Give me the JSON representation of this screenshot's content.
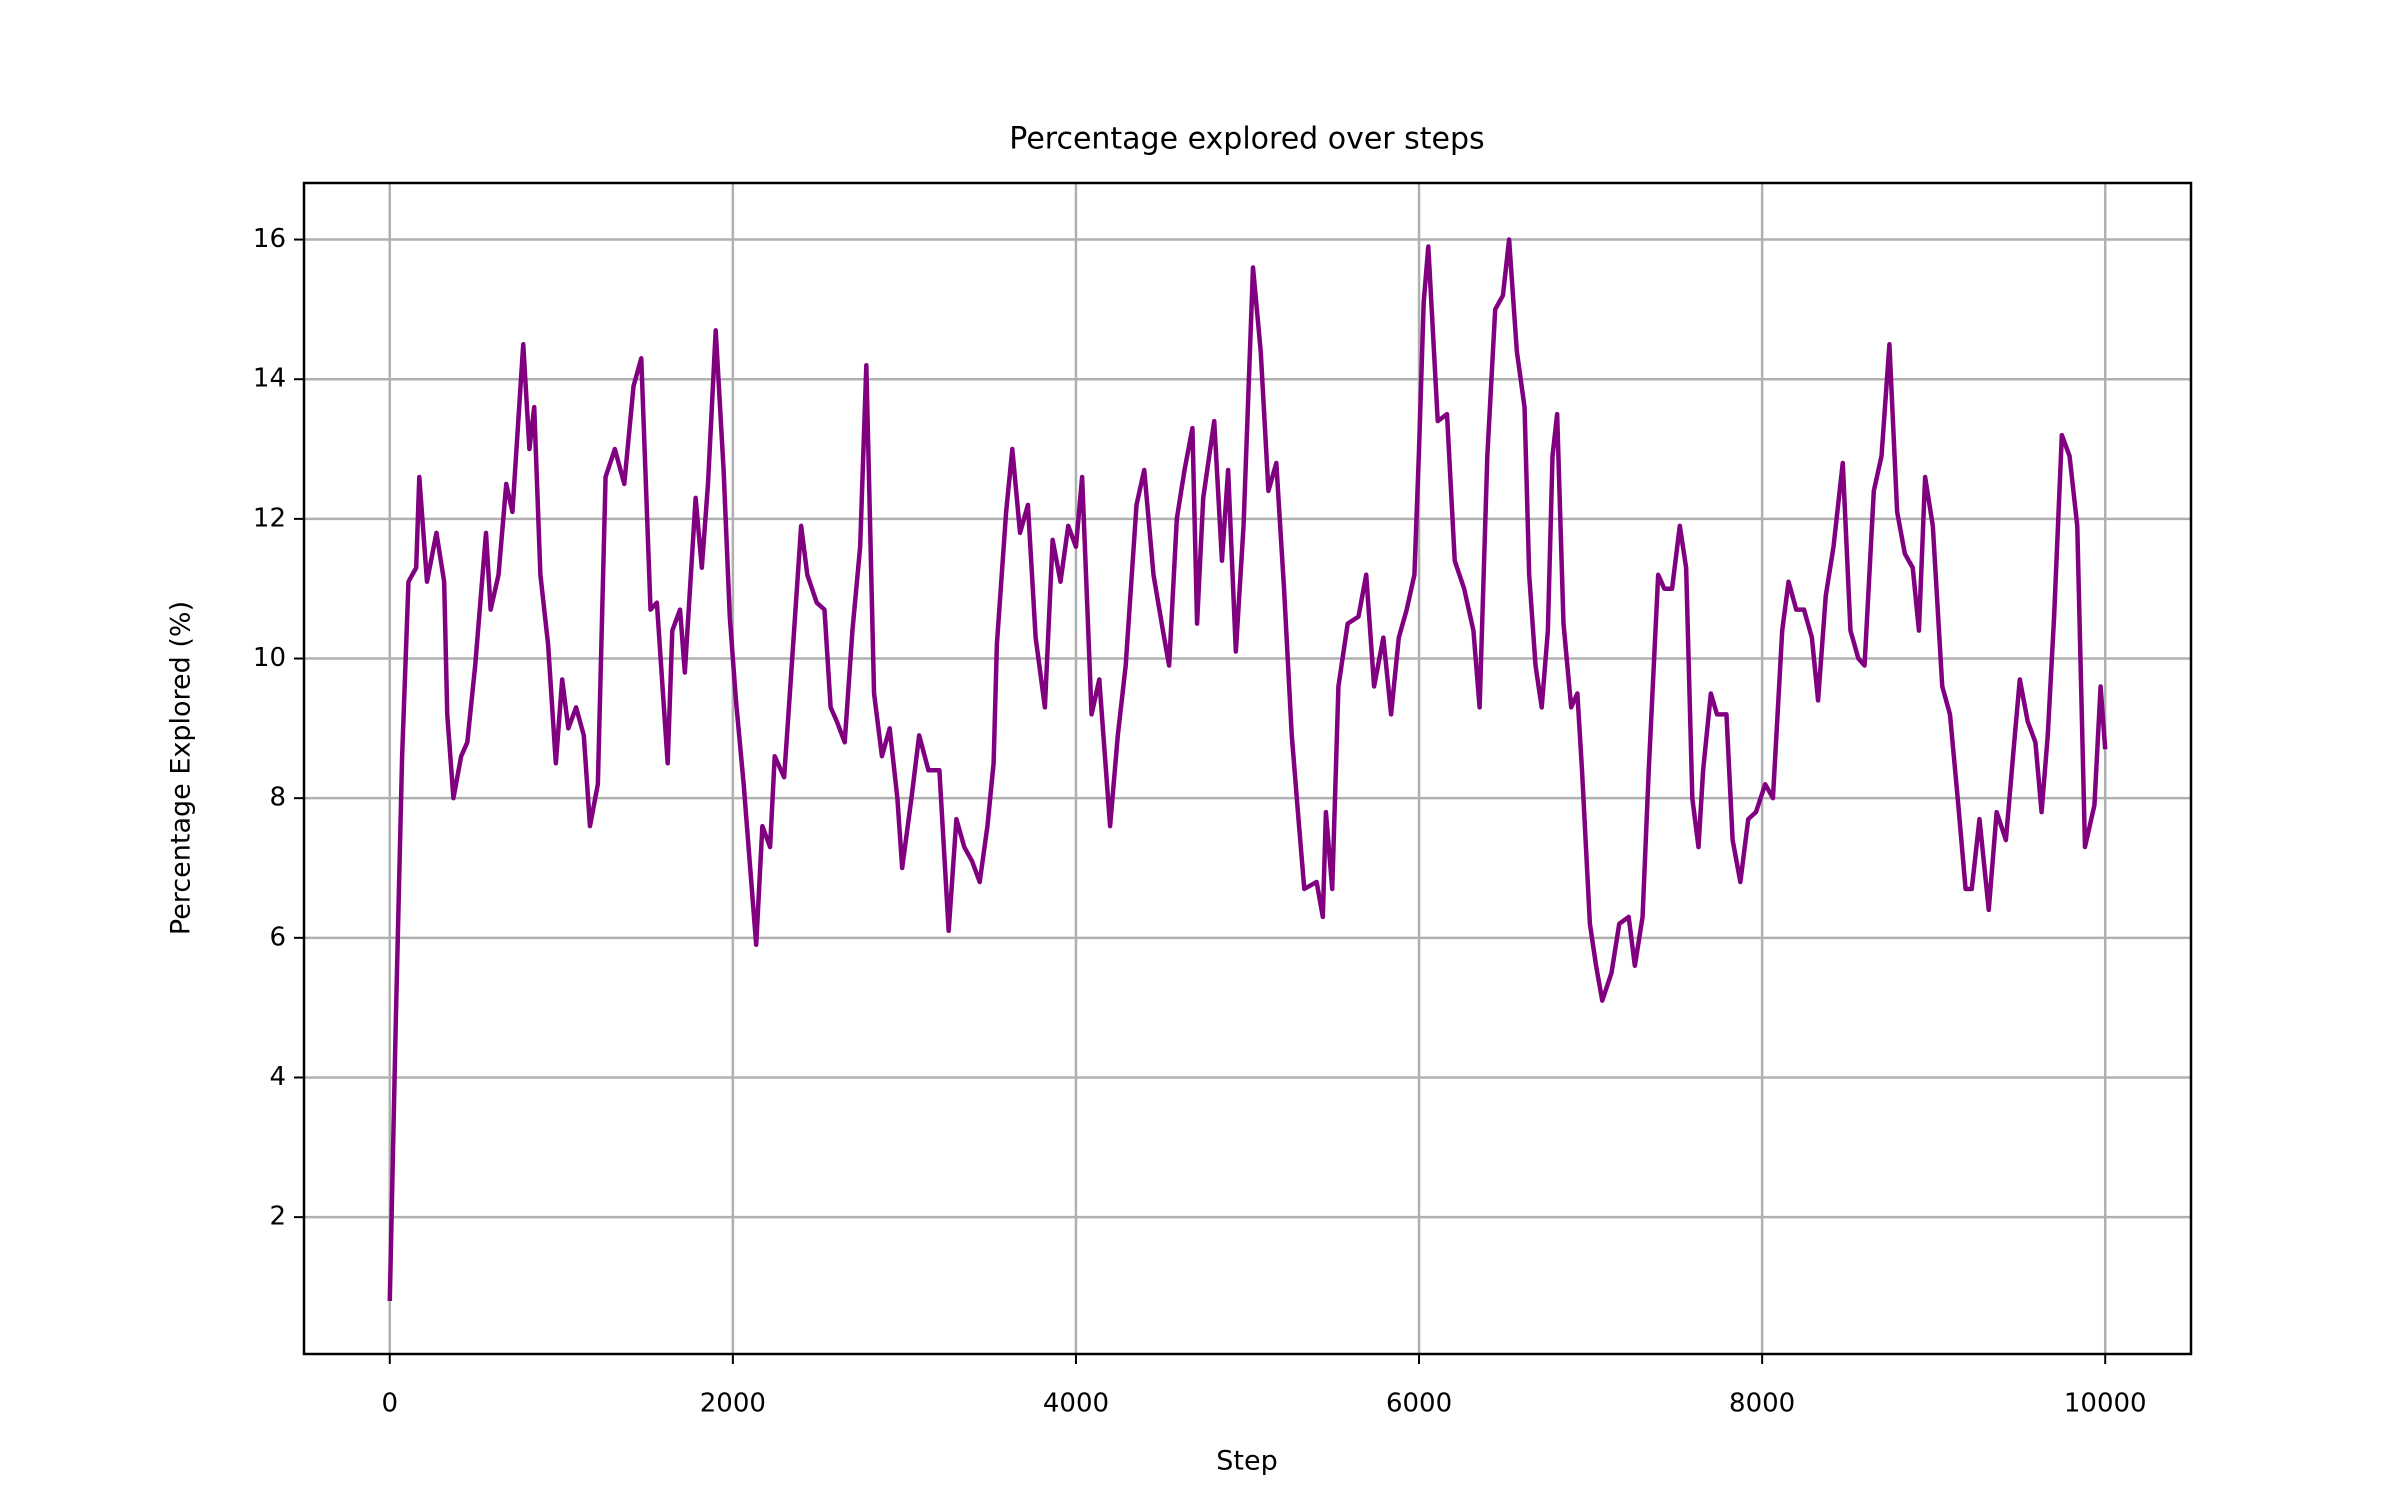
{
  "chart_data": {
    "type": "line",
    "title": "Percentage explored over steps",
    "xlabel": "Step",
    "ylabel": "Percentage Explored (%)",
    "color": "#800080",
    "grid": true,
    "xlim": [
      -500,
      10500
    ],
    "xticks": [
      0,
      2000,
      4000,
      6000,
      8000,
      10000
    ],
    "ylim": [
      0.04,
      16.81
    ],
    "yticks": [
      2,
      4,
      6,
      8,
      10,
      12,
      14,
      16
    ],
    "x": [
      0,
      36,
      72,
      109,
      154,
      172,
      217,
      272,
      317,
      335,
      371,
      416,
      452,
      498,
      561,
      588,
      634,
      679,
      715,
      778,
      814,
      842,
      878,
      923,
      968,
      1005,
      1041,
      1086,
      1131,
      1167,
      1213,
      1258,
      1312,
      1367,
      1421,
      1466,
      1520,
      1557,
      1620,
      1647,
      1692,
      1720,
      1783,
      1819,
      1855,
      1900,
      1946,
      1982,
      2018,
      2063,
      2136,
      2172,
      2217,
      2244,
      2299,
      2335,
      2398,
      2434,
      2489,
      2534,
      2570,
      2606,
      2652,
      2697,
      2742,
      2778,
      2823,
      2869,
      2914,
      2959,
      2987,
      3041,
      3086,
      3140,
      3204,
      3258,
      3303,
      3349,
      3394,
      3439,
      3484,
      3520,
      3539,
      3593,
      3629,
      3674,
      3720,
      3765,
      3819,
      3864,
      3910,
      3955,
      4000,
      4036,
      4091,
      4136,
      4199,
      4244,
      4290,
      4353,
      4398,
      4452,
      4507,
      4543,
      4588,
      4633,
      4679,
      4706,
      4742,
      4806,
      4851,
      4887,
      4932,
      4977,
      5032,
      5077,
      5122,
      5168,
      5213,
      5258,
      5294,
      5331,
      5403,
      5439,
      5457,
      5494,
      5530,
      5584,
      5647,
      5692,
      5738,
      5792,
      5837,
      5882,
      5928,
      5973,
      6000,
      6027,
      6054,
      6109,
      6163,
      6208,
      6263,
      6317,
      6353,
      6398,
      6444,
      6489,
      6525,
      6570,
      6615,
      6642,
      6679,
      6715,
      6751,
      6778,
      6805,
      6842,
      6887,
      6923,
      6950,
      6996,
      7032,
      7068,
      7122,
      7167,
      7222,
      7258,
      7303,
      7339,
      7394,
      7430,
      7475,
      7520,
      7557,
      7593,
      7629,
      7656,
      7701,
      7737,
      7792,
      7828,
      7873,
      7919,
      7964,
      8018,
      8063,
      8117,
      8154,
      8199,
      8244,
      8290,
      8326,
      8371,
      8416,
      8470,
      8515,
      8561,
      8597,
      8651,
      8696,
      8742,
      8787,
      8832,
      8878,
      8914,
      8950,
      8995,
      9050,
      9095,
      9140,
      9186,
      9222,
      9267,
      9321,
      9367,
      9421,
      9466,
      9502,
      9548,
      9593,
      9629,
      9665,
      9702,
      9747,
      9792,
      9837,
      9882,
      9937,
      9973,
      10000
    ],
    "values": [
      0.8,
      4.9,
      8.6,
      11.1,
      11.3,
      12.6,
      11.1,
      11.8,
      11.1,
      9.2,
      8,
      8.6,
      8.8,
      9.9,
      11.8,
      10.7,
      11.2,
      12.5,
      12.1,
      14.5,
      13,
      13.6,
      11.2,
      10.2,
      8.5,
      9.7,
      9,
      9.3,
      8.9,
      7.6,
      8.2,
      12.6,
      13,
      12.5,
      13.9,
      14.3,
      10.7,
      10.8,
      8.5,
      10.4,
      10.7,
      9.8,
      12.3,
      11.3,
      12.5,
      14.7,
      12.7,
      10.6,
      9.4,
      8.2,
      5.9,
      7.6,
      7.3,
      8.6,
      8.3,
      9.6,
      11.9,
      11.2,
      10.8,
      10.7,
      9.3,
      9.1,
      8.8,
      10.4,
      11.6,
      14.2,
      9.5,
      8.6,
      9,
      8,
      7,
      8,
      8.9,
      8.4,
      8.4,
      6.1,
      7.7,
      7.3,
      7.1,
      6.8,
      7.6,
      8.5,
      10.2,
      12.1,
      13,
      11.8,
      12.2,
      10.3,
      9.3,
      11.7,
      11.1,
      11.9,
      11.6,
      12.6,
      9.2,
      9.7,
      7.6,
      8.9,
      9.9,
      12.2,
      12.7,
      11.2,
      10.4,
      9.9,
      12,
      12.7,
      13.3,
      10.5,
      12.3,
      13.4,
      11.4,
      12.7,
      10.1,
      11.9,
      15.6,
      14.4,
      12.4,
      12.8,
      11,
      8.9,
      7.8,
      6.7,
      6.8,
      6.3,
      7.8,
      6.7,
      9.6,
      10.5,
      10.6,
      11.2,
      9.6,
      10.3,
      9.2,
      10.3,
      10.7,
      11.2,
      13,
      15.1,
      15.9,
      13.4,
      13.5,
      11.4,
      11,
      10.4,
      9.3,
      12.9,
      15,
      15.2,
      16,
      14.4,
      13.6,
      11.2,
      9.9,
      9.3,
      10.4,
      12.9,
      13.5,
      10.5,
      9.3,
      9.5,
      8.4,
      6.2,
      5.6,
      5.1,
      5.5,
      6.2,
      6.3,
      5.6,
      6.3,
      8.4,
      11.2,
      11,
      11,
      11.9,
      11.3,
      8,
      7.3,
      8.4,
      9.5,
      9.2,
      9.2,
      7.4,
      6.8,
      7.7,
      7.8,
      8.2,
      8,
      10.4,
      11.1,
      10.7,
      10.7,
      10.3,
      9.4,
      10.9,
      11.6,
      12.8,
      10.4,
      10,
      9.9,
      12.4,
      12.9,
      14.5,
      12.1,
      11.5,
      11.3,
      10.4,
      12.6,
      11.9,
      9.6,
      9.2,
      8,
      6.7,
      6.7,
      7.7,
      6.4,
      7.8,
      7.4,
      8.7,
      9.7,
      9.1,
      8.8,
      7.8,
      8.9,
      10.6,
      13.2,
      12.9,
      11.9,
      7.3,
      7.9,
      9.6,
      8.7
    ]
  }
}
